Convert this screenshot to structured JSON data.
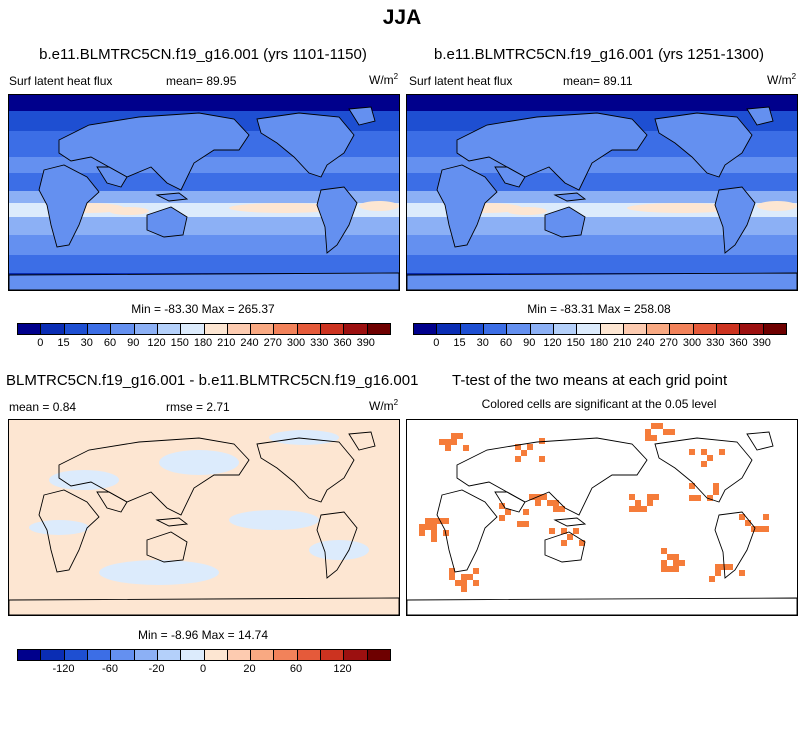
{
  "page_title": "JJA",
  "colors": {
    "seq": [
      "#00008c",
      "#0a2db4",
      "#1e4fd2",
      "#3c6ee6",
      "#6490f0",
      "#8cb0f5",
      "#b4d0fa",
      "#dcebfc",
      "#fde6d2",
      "#fdcbb0",
      "#f9a982",
      "#f2825a",
      "#e55a3a",
      "#cc3320",
      "#9c1010",
      "#6e0000"
    ],
    "land_outline": "#000000",
    "sig_cells": "#f57c3a"
  },
  "panels": {
    "p1": {
      "title": "b.e11.BLMTRC5CN.f19_g16.001 (yrs 1101-1150)",
      "left": "Surf latent heat flux",
      "mean": "mean=  89.95",
      "units": "W/m",
      "units_sup": "2",
      "minmax": "Min = -83.30 Max = 265.37"
    },
    "p2": {
      "title": "b.e11.BLMTRC5CN.f19_g16.001 (yrs 1251-1300)",
      "left": "Surf latent heat flux",
      "mean": "mean=  89.11",
      "units": "W/m",
      "units_sup": "2",
      "minmax": "Min = -83.31 Max = 258.08"
    },
    "p3": {
      "title": "BLMTRC5CN.f19_g16.001 - b.e11.BLMTRC5CN.f19_g16.001",
      "left": "mean =   0.84",
      "rmse": "rmse =   2.71",
      "units": "W/m",
      "units_sup": "2",
      "minmax": "Min = -8.96 Max = 14.74"
    },
    "p4": {
      "title": "T-test of the two means at each grid point",
      "subtitle": "Colored cells are significant at the 0.05 level"
    }
  },
  "colorbars": {
    "top_ticks": [
      "0",
      "15",
      "30",
      "60",
      "90",
      "120",
      "150",
      "180",
      "210",
      "240",
      "270",
      "300",
      "330",
      "360",
      "390"
    ],
    "diff_ticks": [
      "-120",
      "-60",
      "-20",
      "0",
      "20",
      "60",
      "120"
    ]
  },
  "chart_data": [
    {
      "type": "heatmap",
      "title": "b.e11.BLMTRC5CN.f19_g16.001 (yrs 1101-1150)",
      "variable": "Surf latent heat flux",
      "units": "W/m2",
      "mean": 89.95,
      "min": -83.3,
      "max": 265.37,
      "levels": [
        0,
        15,
        30,
        60,
        90,
        120,
        150,
        180,
        210,
        240,
        270,
        300,
        330,
        360,
        390
      ]
    },
    {
      "type": "heatmap",
      "title": "b.e11.BLMTRC5CN.f19_g16.001 (yrs 1251-1300)",
      "variable": "Surf latent heat flux",
      "units": "W/m2",
      "mean": 89.11,
      "min": -83.31,
      "max": 258.08,
      "levels": [
        0,
        15,
        30,
        60,
        90,
        120,
        150,
        180,
        210,
        240,
        270,
        300,
        330,
        360,
        390
      ]
    },
    {
      "type": "heatmap",
      "title": "BLMTRC5CN.f19_g16.001 - b.e11.BLMTRC5CN.f19_g16.001",
      "units": "W/m2",
      "mean": 0.84,
      "rmse": 2.71,
      "min": -8.96,
      "max": 14.74,
      "levels": [
        -120,
        -60,
        -20,
        0,
        20,
        60,
        120
      ]
    },
    {
      "type": "heatmap",
      "title": "T-test of the two means at each grid point",
      "annotation": "Colored cells are significant at the 0.05 level",
      "significance_level": 0.05
    }
  ]
}
